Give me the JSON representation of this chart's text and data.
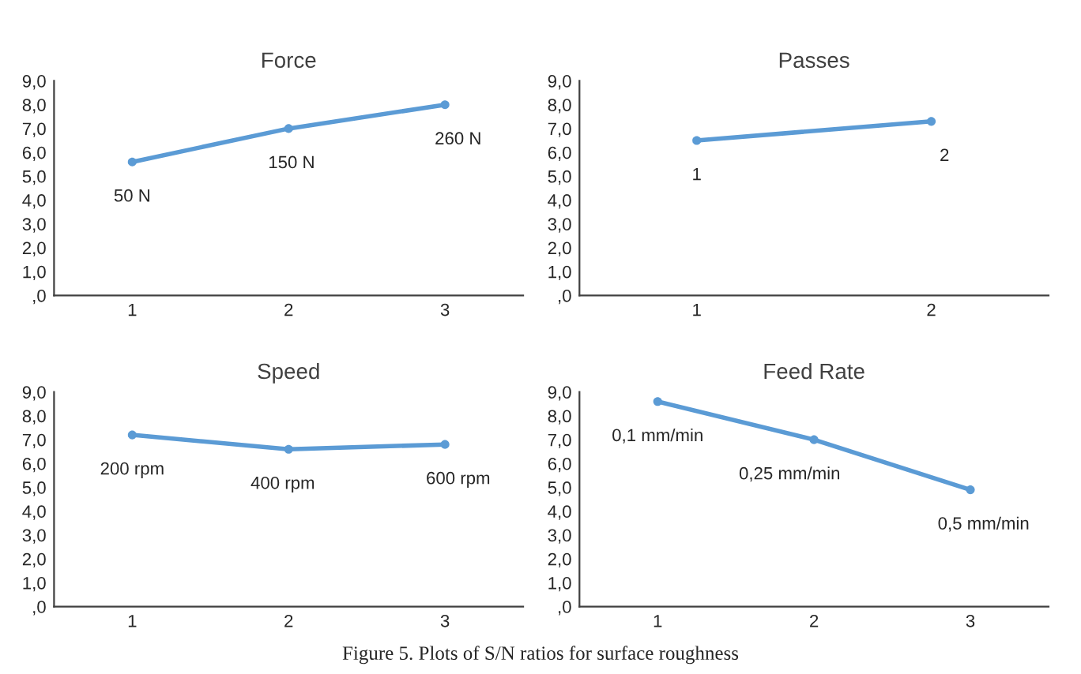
{
  "chart_data": [
    {
      "type": "line",
      "title": "Force",
      "categories": [
        "1",
        "2",
        "3"
      ],
      "series": [
        {
          "color": "#5b9bd5",
          "values": [
            5.6,
            7.0,
            8.0
          ]
        }
      ],
      "ylim": [
        0,
        9
      ],
      "yticks": [
        {
          "value": 0,
          "label": ",0"
        },
        {
          "value": 1,
          "label": "1,0"
        },
        {
          "value": 2,
          "label": "2,0"
        },
        {
          "value": 3,
          "label": "3,0"
        },
        {
          "value": 4,
          "label": "4,0"
        },
        {
          "value": 5,
          "label": "5,0"
        },
        {
          "value": 6,
          "label": "6,0"
        },
        {
          "value": 7,
          "label": "7,0"
        },
        {
          "value": 8,
          "label": "8,0"
        },
        {
          "value": 9,
          "label": "9,0"
        }
      ],
      "grid": false,
      "marker": "circle",
      "line_style": "solid",
      "annotations": [
        {
          "text": "50 N",
          "x": "1",
          "y": 5.6
        },
        {
          "text": "150 N",
          "x": "2",
          "y": 7.0
        },
        {
          "text": "260 N",
          "x": "3",
          "y": 8.0
        }
      ]
    },
    {
      "type": "line",
      "title": "Passes",
      "categories": [
        "1",
        "2"
      ],
      "series": [
        {
          "color": "#5b9bd5",
          "values": [
            6.5,
            7.3
          ]
        }
      ],
      "ylim": [
        0,
        9
      ],
      "yticks": [
        {
          "value": 0,
          "label": ",0"
        },
        {
          "value": 1,
          "label": "1,0"
        },
        {
          "value": 2,
          "label": "2,0"
        },
        {
          "value": 3,
          "label": "3,0"
        },
        {
          "value": 4,
          "label": "4,0"
        },
        {
          "value": 5,
          "label": "5,0"
        },
        {
          "value": 6,
          "label": "6,0"
        },
        {
          "value": 7,
          "label": "7,0"
        },
        {
          "value": 8,
          "label": "8,0"
        },
        {
          "value": 9,
          "label": "9,0"
        }
      ],
      "grid": false,
      "marker": "circle",
      "line_style": "solid",
      "annotations": [
        {
          "text": "1",
          "x": "1",
          "y": 6.5
        },
        {
          "text": "2",
          "x": "2",
          "y": 7.3
        }
      ]
    },
    {
      "type": "line",
      "title": "Speed",
      "categories": [
        "1",
        "2",
        "3"
      ],
      "series": [
        {
          "color": "#5b9bd5",
          "values": [
            7.2,
            6.6,
            6.8
          ]
        }
      ],
      "ylim": [
        0,
        9
      ],
      "yticks": [
        {
          "value": 0,
          "label": ",0"
        },
        {
          "value": 1,
          "label": "1,0"
        },
        {
          "value": 2,
          "label": "2,0"
        },
        {
          "value": 3,
          "label": "3,0"
        },
        {
          "value": 4,
          "label": "4,0"
        },
        {
          "value": 5,
          "label": "5,0"
        },
        {
          "value": 6,
          "label": "6,0"
        },
        {
          "value": 7,
          "label": "7,0"
        },
        {
          "value": 8,
          "label": "8,0"
        },
        {
          "value": 9,
          "label": "9,0"
        }
      ],
      "grid": false,
      "marker": "circle",
      "line_style": "solid",
      "annotations": [
        {
          "text": "200 rpm",
          "x": "1",
          "y": 7.2
        },
        {
          "text": "400 rpm",
          "x": "2",
          "y": 6.6
        },
        {
          "text": "600 rpm",
          "x": "3",
          "y": 6.8
        }
      ]
    },
    {
      "type": "line",
      "title": "Feed Rate",
      "categories": [
        "1",
        "2",
        "3"
      ],
      "series": [
        {
          "color": "#5b9bd5",
          "values": [
            8.6,
            7.0,
            4.9
          ]
        }
      ],
      "ylim": [
        0,
        9
      ],
      "yticks": [
        {
          "value": 0,
          "label": ",0"
        },
        {
          "value": 1,
          "label": "1,0"
        },
        {
          "value": 2,
          "label": "2,0"
        },
        {
          "value": 3,
          "label": "3,0"
        },
        {
          "value": 4,
          "label": "4,0"
        },
        {
          "value": 5,
          "label": "5,0"
        },
        {
          "value": 6,
          "label": "6,0"
        },
        {
          "value": 7,
          "label": "7,0"
        },
        {
          "value": 8,
          "label": "8,0"
        },
        {
          "value": 9,
          "label": "9,0"
        }
      ],
      "grid": false,
      "marker": "circle",
      "line_style": "solid",
      "annotations": [
        {
          "text": "0,1 mm/min",
          "x": "1",
          "y": 8.6
        },
        {
          "text": "0,25 mm/min",
          "x": "2",
          "y": 7.0
        },
        {
          "text": "0,5 mm/min",
          "x": "3",
          "y": 4.9
        },
        "Figure 5. Plots of S/N ratios for surface roughness"
      ]
    }
  ]
}
